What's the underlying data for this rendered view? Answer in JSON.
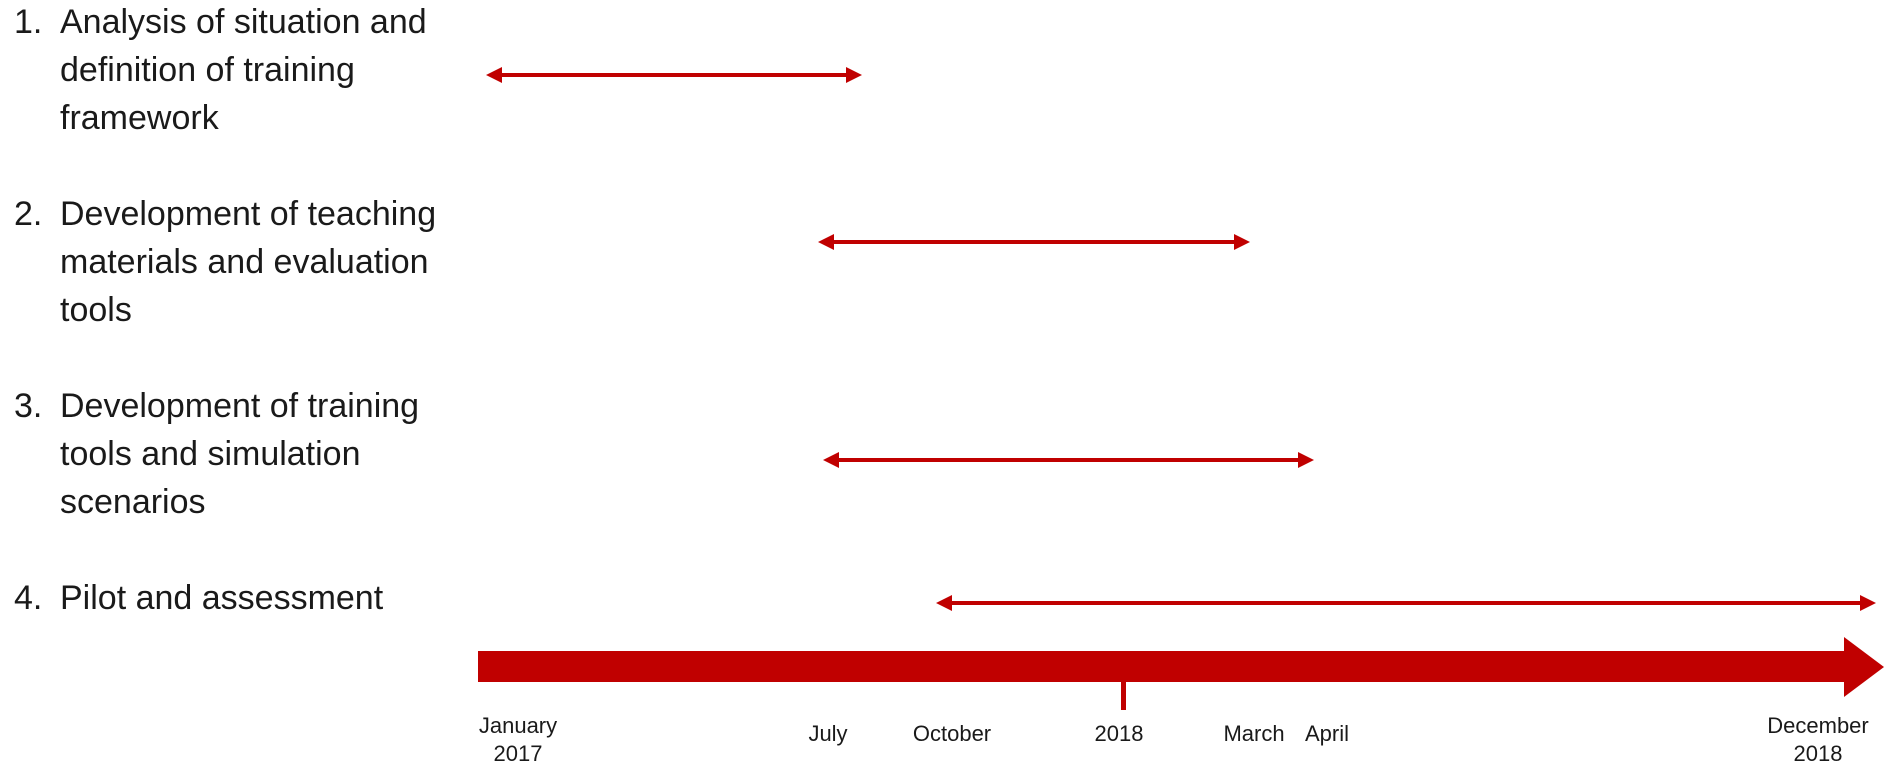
{
  "tasks": [
    {
      "num": "1.",
      "text": "Analysis of situation and\ndefinition of training\nframework"
    },
    {
      "num": "2.",
      "text": "Development of teaching\nmaterials and evaluation\ntools"
    },
    {
      "num": "3.",
      "text": "Development of training\ntools and simulation\nscenarios"
    },
    {
      "num": "4.",
      "text": "Pilot and assessment"
    }
  ],
  "axis_labels": {
    "january_2017": "January\n2017",
    "july": "July",
    "october": "October",
    "y2018": "2018",
    "march": "March",
    "april": "April",
    "december_2018": "December\n2018"
  },
  "colors": {
    "accent": "#c00000",
    "text": "#1a1a1a"
  }
}
